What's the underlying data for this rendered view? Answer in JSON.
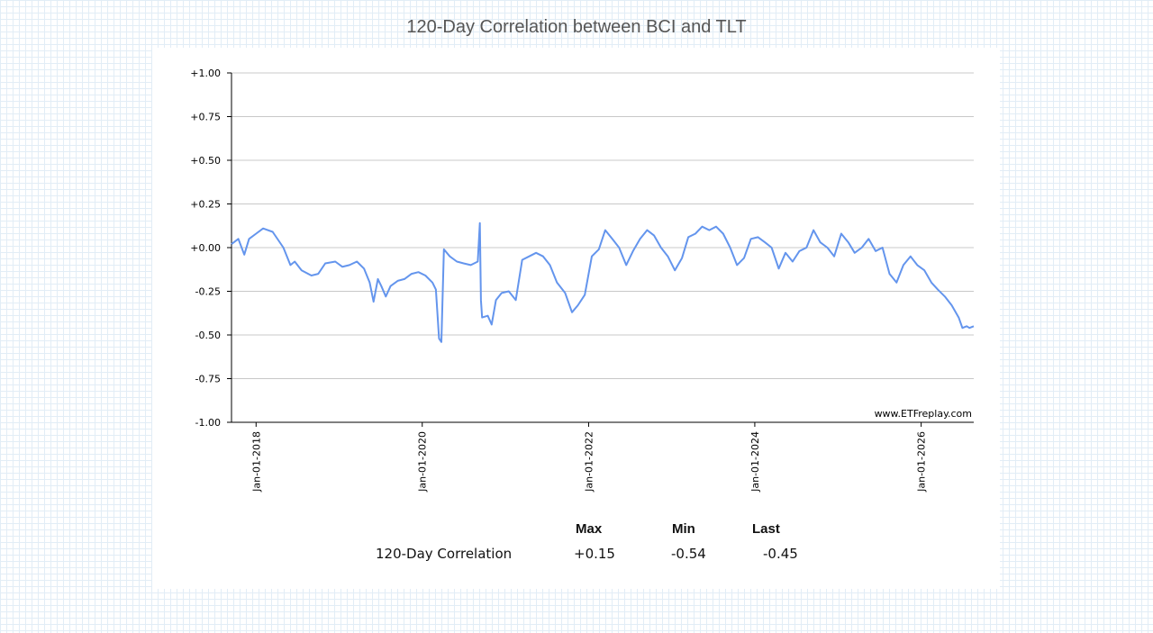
{
  "page": {
    "title": "120-Day Correlation between BCI and TLT"
  },
  "chart_data": {
    "type": "line",
    "title": "120-Day Correlation between BCI and TLT",
    "xlabel": "",
    "ylabel": "",
    "ylim": [
      -1.0,
      1.0
    ],
    "xlim": [
      "2017-09-15",
      "2026-08-20"
    ],
    "yticks": [
      {
        "value": 1.0,
        "label": "+1.00"
      },
      {
        "value": 0.75,
        "label": "+0.75"
      },
      {
        "value": 0.5,
        "label": "+0.50"
      },
      {
        "value": 0.25,
        "label": "+0.25"
      },
      {
        "value": 0.0,
        "label": "+0.00"
      },
      {
        "value": -0.25,
        "label": "-0.25"
      },
      {
        "value": -0.5,
        "label": "-0.50"
      },
      {
        "value": -0.75,
        "label": "-0.75"
      },
      {
        "value": -1.0,
        "label": "-1.00"
      }
    ],
    "xticks": [
      {
        "date": "2018-01-01",
        "label": "Jan-01-2018"
      },
      {
        "date": "2020-01-01",
        "label": "Jan-01-2020"
      },
      {
        "date": "2022-01-01",
        "label": "Jan-01-2022"
      },
      {
        "date": "2024-01-01",
        "label": "Jan-01-2024"
      },
      {
        "date": "2026-01-01",
        "label": "Jan-01-2026"
      }
    ],
    "grid": true,
    "watermark": "www.ETFreplay.com",
    "line_color": "#6495ed",
    "series": [
      {
        "name": "120-Day Correlation",
        "x": [
          "2017-09-15",
          "2017-10-15",
          "2017-11-10",
          "2017-12-01",
          "2018-01-01",
          "2018-02-01",
          "2018-03-15",
          "2018-05-01",
          "2018-06-01",
          "2018-06-20",
          "2018-07-20",
          "2018-09-01",
          "2018-10-01",
          "2018-11-01",
          "2018-12-15",
          "2019-01-15",
          "2019-02-15",
          "2019-03-20",
          "2019-04-20",
          "2019-05-15",
          "2019-06-01",
          "2019-06-20",
          "2019-07-05",
          "2019-07-25",
          "2019-08-15",
          "2019-09-15",
          "2019-10-15",
          "2019-11-15",
          "2019-12-15",
          "2020-01-15",
          "2020-02-15",
          "2020-03-01",
          "2020-03-15",
          "2020-03-25",
          "2020-04-05",
          "2020-05-01",
          "2020-06-01",
          "2020-07-01",
          "2020-08-01",
          "2020-09-01",
          "2020-09-10",
          "2020-09-15",
          "2020-09-20",
          "2020-10-15",
          "2020-11-01",
          "2020-11-20",
          "2020-12-15",
          "2021-01-15",
          "2021-02-15",
          "2021-03-15",
          "2021-04-15",
          "2021-05-15",
          "2021-06-15",
          "2021-07-15",
          "2021-08-15",
          "2021-09-20",
          "2021-10-20",
          "2021-11-15",
          "2021-12-15",
          "2022-01-15",
          "2022-02-15",
          "2022-03-15",
          "2022-04-15",
          "2022-05-15",
          "2022-06-15",
          "2022-07-15",
          "2022-08-15",
          "2022-09-15",
          "2022-10-15",
          "2022-11-15",
          "2022-12-15",
          "2023-01-15",
          "2023-02-15",
          "2023-03-15",
          "2023-04-15",
          "2023-05-15",
          "2023-06-15",
          "2023-07-15",
          "2023-08-15",
          "2023-09-15",
          "2023-10-15",
          "2023-11-15",
          "2023-12-15",
          "2024-01-15",
          "2024-02-15",
          "2024-03-15",
          "2024-04-15",
          "2024-05-15",
          "2024-06-15",
          "2024-07-15",
          "2024-08-15",
          "2024-09-15",
          "2024-10-15",
          "2024-11-15",
          "2024-12-15",
          "2025-01-15",
          "2025-02-15",
          "2025-03-15",
          "2025-04-15",
          "2025-05-15",
          "2025-06-15",
          "2025-07-15",
          "2025-08-15",
          "2025-09-15",
          "2025-10-15",
          "2025-11-15",
          "2025-12-15",
          "2026-01-15",
          "2026-02-15",
          "2026-03-15",
          "2026-04-15",
          "2026-05-15",
          "2026-06-15",
          "2026-07-01",
          "2026-07-20",
          "2026-08-01",
          "2026-08-20"
        ],
        "values": [
          0.02,
          0.05,
          -0.04,
          0.05,
          0.08,
          0.11,
          0.09,
          0.0,
          -0.1,
          -0.08,
          -0.13,
          -0.16,
          -0.15,
          -0.09,
          -0.08,
          -0.11,
          -0.1,
          -0.08,
          -0.12,
          -0.2,
          -0.31,
          -0.18,
          -0.22,
          -0.28,
          -0.22,
          -0.19,
          -0.18,
          -0.15,
          -0.14,
          -0.16,
          -0.2,
          -0.24,
          -0.52,
          -0.54,
          -0.01,
          -0.05,
          -0.08,
          -0.09,
          -0.1,
          -0.08,
          0.14,
          -0.3,
          -0.4,
          -0.39,
          -0.44,
          -0.3,
          -0.26,
          -0.25,
          -0.3,
          -0.07,
          -0.05,
          -0.03,
          -0.05,
          -0.1,
          -0.2,
          -0.26,
          -0.37,
          -0.33,
          -0.27,
          -0.05,
          -0.01,
          0.1,
          0.05,
          0.0,
          -0.1,
          -0.02,
          0.05,
          0.1,
          0.07,
          0.0,
          -0.05,
          -0.13,
          -0.06,
          0.06,
          0.08,
          0.12,
          0.1,
          0.12,
          0.08,
          0.0,
          -0.1,
          -0.06,
          0.05,
          0.06,
          0.03,
          0.0,
          -0.12,
          -0.03,
          -0.08,
          -0.02,
          0.0,
          0.1,
          0.03,
          0.0,
          -0.05,
          0.08,
          0.03,
          -0.03,
          0.0,
          0.05,
          -0.02,
          0.0,
          -0.15,
          -0.2,
          -0.1,
          -0.05,
          -0.1,
          -0.13,
          -0.2,
          -0.24,
          -0.28,
          -0.33,
          -0.4,
          -0.46,
          -0.45,
          -0.46,
          -0.45
        ]
      }
    ]
  },
  "stats": {
    "headers": [
      "Max",
      "Min",
      "Last"
    ],
    "rows": [
      {
        "label": "120-Day Correlation",
        "max": "+0.15",
        "min": "-0.54",
        "last": "-0.45"
      }
    ]
  }
}
